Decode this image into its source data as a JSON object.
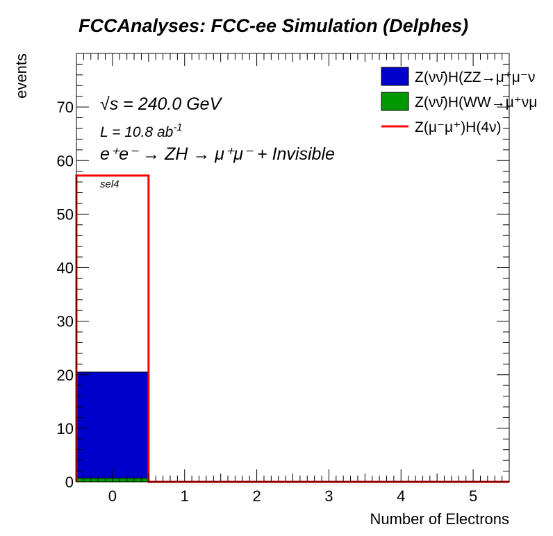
{
  "chart_data": {
    "type": "bar",
    "title": "FCCAnalyses: FCC-ee Simulation (Delphes)",
    "xlabel": "Number of Electrons",
    "ylabel": "events",
    "xlim": [
      -0.5,
      5.5
    ],
    "ylim": [
      0,
      80
    ],
    "x_ticks": [
      "0",
      "1",
      "2",
      "3",
      "4",
      "5"
    ],
    "y_ticks": [
      "0",
      "10",
      "20",
      "30",
      "40",
      "50",
      "60",
      "70"
    ],
    "bins": [
      0,
      1,
      2,
      3,
      4,
      5
    ],
    "stacked_series": [
      {
        "name": "Z(νν̄)H(WW→μ⁺νμ",
        "color": "#009900",
        "values": [
          0.7,
          0,
          0,
          0,
          0,
          0
        ]
      },
      {
        "name": "Z(νν̄)H(ZZ→μ⁺μ⁻ν",
        "color": "#0000cc",
        "values": [
          19.8,
          0,
          0,
          0,
          0,
          0
        ]
      }
    ],
    "line_series": [
      {
        "name": "Z(μ⁻μ⁺)H(4ν)",
        "color": "#ff0000",
        "values": [
          57.2,
          0,
          0,
          0,
          0,
          0
        ]
      }
    ],
    "legend_position": "top-right",
    "grid": false
  },
  "annotations": {
    "sqrt_s": "√s = 240.0 GeV",
    "luminosity": "L = 10.8 ab",
    "luminosity_exp": "-1",
    "process": "e⁺e⁻ → ZH → μ⁺μ⁻ + Invisible",
    "selection": "sel4"
  }
}
